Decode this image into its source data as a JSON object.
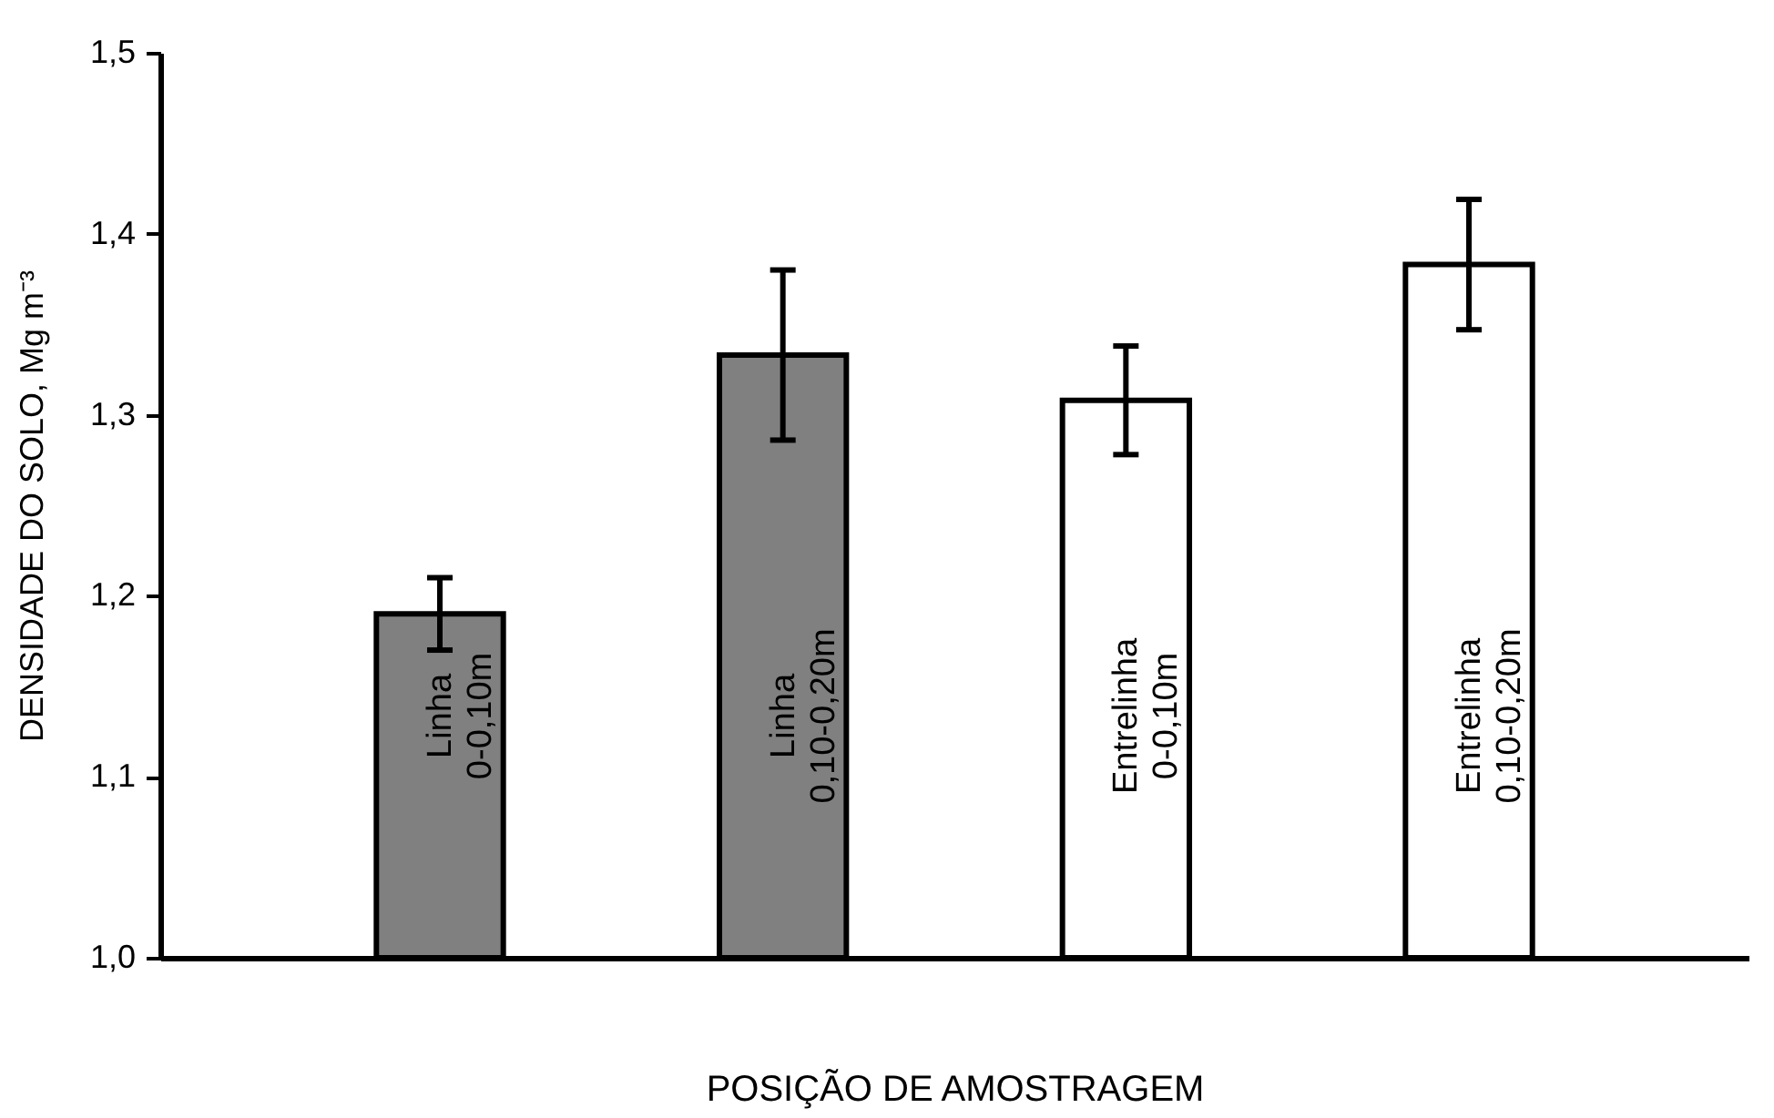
{
  "chart_data": {
    "type": "bar",
    "ylabel": "DENSIDADE DO SOLO, Mg m⁻³",
    "xlabel": "POSIÇÃO DE AMOSTRAGEM",
    "categories": [
      "Linha 0-0,10m",
      "Linha 0,10-0,20m",
      "Entrelinha 0-0,10m",
      "Entrelinha 0,10-0,20m"
    ],
    "values": [
      1.19,
      1.333,
      1.308,
      1.383
    ],
    "errors": [
      0.02,
      0.047,
      0.03,
      0.036
    ],
    "colors": [
      "#808080",
      "#808080",
      "#ffffff",
      "#ffffff"
    ],
    "ylim": [
      1.0,
      1.5
    ],
    "yticks": [
      {
        "value": 1.0,
        "label": "1,0"
      },
      {
        "value": 1.1,
        "label": "1,1"
      },
      {
        "value": 1.2,
        "label": "1,2"
      },
      {
        "value": 1.3,
        "label": "1,3"
      },
      {
        "value": 1.4,
        "label": "1,4"
      },
      {
        "value": 1.5,
        "label": "1,5"
      }
    ],
    "grid": false
  }
}
